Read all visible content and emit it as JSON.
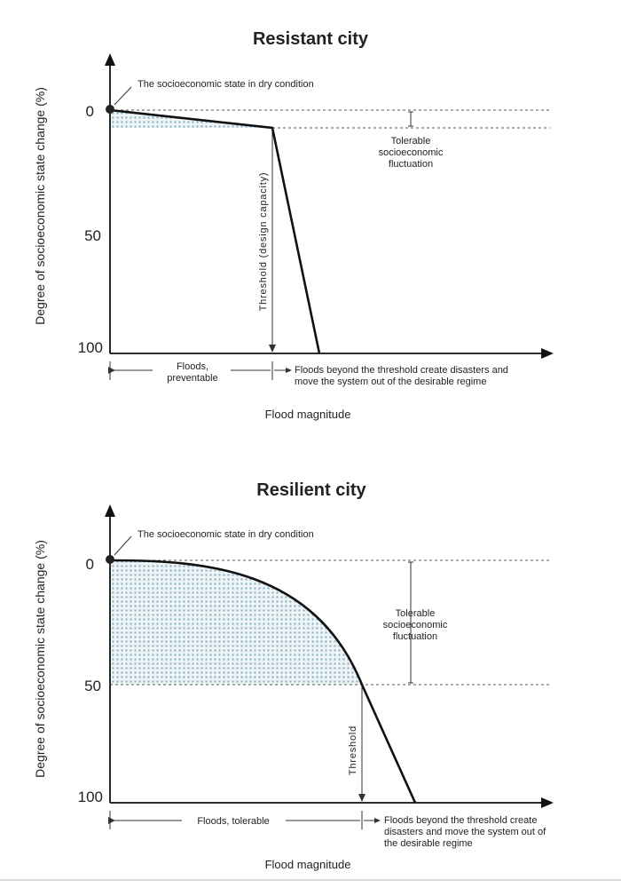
{
  "panels": [
    {
      "title": "Resistant city",
      "y_axis_label": "Degree of  socioeconomic state change (%)",
      "x_axis_label": "Flood magnitude",
      "ticks": [
        "0",
        "50",
        "100"
      ],
      "dry_condition_label": "The socioeconomic state in dry condition",
      "fluctuation_label": [
        "Tolerable",
        "socioeconomic",
        "fluctuation"
      ],
      "threshold_label": "Threshold (design capacity)",
      "floods_left_label": [
        "Floods,",
        "preventable"
      ],
      "floods_right_label": [
        "Floods beyond the threshold create disasters and",
        "move the system out of the desirable regime"
      ]
    },
    {
      "title": "Resilient city",
      "y_axis_label": "Degree of  socioeconomic state change (%)",
      "x_axis_label": "Flood magnitude",
      "ticks": [
        "0",
        "50",
        "100"
      ],
      "dry_condition_label": "The socioeconomic state in dry condition",
      "fluctuation_label": [
        "Tolerable",
        "socioeconomic",
        "fluctuation"
      ],
      "threshold_label": "Threshold",
      "floods_left_label": [
        "Floods, tolerable"
      ],
      "floods_right_label": [
        "Floods beyond the threshold create",
        "disasters and move the system out of",
        "the desirable regime"
      ]
    }
  ],
  "colors": {
    "line": "#111111",
    "fill_pattern": "#8fb5c8"
  }
}
